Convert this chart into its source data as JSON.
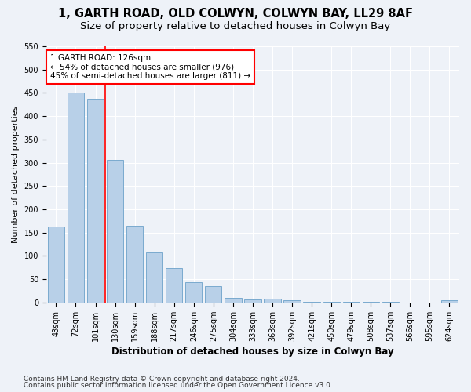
{
  "title1": "1, GARTH ROAD, OLD COLWYN, COLWYN BAY, LL29 8AF",
  "title2": "Size of property relative to detached houses in Colwyn Bay",
  "xlabel": "Distribution of detached houses by size in Colwyn Bay",
  "ylabel": "Number of detached properties",
  "footer1": "Contains HM Land Registry data © Crown copyright and database right 2024.",
  "footer2": "Contains public sector information licensed under the Open Government Licence v3.0.",
  "bar_labels": [
    "43sqm",
    "72sqm",
    "101sqm",
    "130sqm",
    "159sqm",
    "188sqm",
    "217sqm",
    "246sqm",
    "275sqm",
    "304sqm",
    "333sqm",
    "363sqm",
    "392sqm",
    "421sqm",
    "450sqm",
    "479sqm",
    "508sqm",
    "537sqm",
    "566sqm",
    "595sqm",
    "624sqm"
  ],
  "bar_values": [
    163,
    450,
    437,
    306,
    165,
    107,
    74,
    44,
    35,
    9,
    7,
    8,
    5,
    2,
    2,
    1,
    1,
    1,
    0,
    0,
    4
  ],
  "bar_color": "#b8d0e8",
  "bar_edgecolor": "#7aaace",
  "bar_linewidth": 0.7,
  "vline_x": 2.5,
  "vline_color": "red",
  "vline_linewidth": 1.2,
  "annotation_line1": "1 GARTH ROAD: 126sqm",
  "annotation_line2": "← 54% of detached houses are smaller (976)",
  "annotation_line3": "45% of semi-detached houses are larger (811) →",
  "annotation_box_edgecolor": "red",
  "annotation_box_facecolor": "white",
  "ylim": [
    0,
    550
  ],
  "yticks": [
    0,
    50,
    100,
    150,
    200,
    250,
    300,
    350,
    400,
    450,
    500,
    550
  ],
  "bg_color": "#eef2f8",
  "grid_color": "white",
  "title1_fontsize": 10.5,
  "title2_fontsize": 9.5,
  "xlabel_fontsize": 8.5,
  "ylabel_fontsize": 8,
  "tick_fontsize": 7,
  "annotation_fontsize": 7.5,
  "footer_fontsize": 6.5
}
